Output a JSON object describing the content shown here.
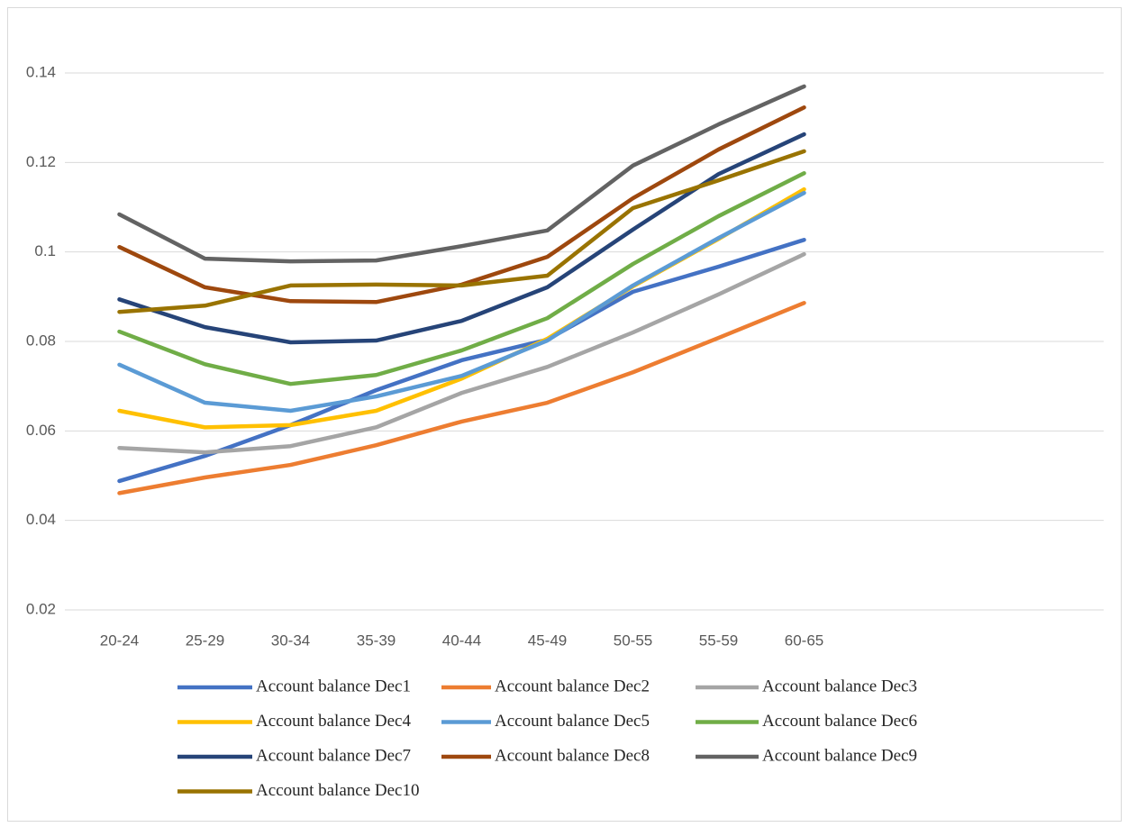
{
  "chart_data": {
    "type": "line",
    "categories": [
      "20-24",
      "25-29",
      "30-34",
      "35-39",
      "40-44",
      "45-49",
      "50-55",
      "55-59",
      "60-65",
      null,
      null,
      null
    ],
    "ylim": [
      0.02,
      0.14
    ],
    "yticks": [
      0.02,
      0.04,
      0.06,
      0.08,
      0.1,
      0.12,
      0.14
    ],
    "grid": true,
    "series": [
      {
        "name": "Account balance Dec1",
        "color": "#4472C4",
        "values": [
          0.0488,
          0.0544,
          0.0613,
          0.0691,
          0.0758,
          0.0804,
          0.0911,
          0.0967,
          0.1027,
          null,
          null,
          null
        ]
      },
      {
        "name": "Account balance Dec2",
        "color": "#ED7D31",
        "values": [
          0.0461,
          0.0496,
          0.0524,
          0.0568,
          0.0621,
          0.0663,
          0.0731,
          0.0808,
          0.0886,
          null,
          null,
          null
        ]
      },
      {
        "name": "Account balance Dec3",
        "color": "#A5A5A5",
        "values": [
          0.0562,
          0.0552,
          0.0566,
          0.0608,
          0.0685,
          0.0743,
          0.082,
          0.0905,
          0.0995,
          null,
          null,
          null
        ]
      },
      {
        "name": "Account balance Dec4",
        "color": "#FFC000",
        "values": [
          0.0645,
          0.0608,
          0.0613,
          0.0645,
          0.0717,
          0.0806,
          0.0923,
          0.1029,
          0.114,
          null,
          null,
          null
        ]
      },
      {
        "name": "Account balance Dec5",
        "color": "#5B9BD5",
        "values": [
          0.0748,
          0.0663,
          0.0645,
          0.0677,
          0.0723,
          0.0802,
          0.0925,
          0.1031,
          0.1132,
          null,
          null,
          null
        ]
      },
      {
        "name": "Account balance Dec6",
        "color": "#70AD47",
        "values": [
          0.0822,
          0.0749,
          0.0705,
          0.0725,
          0.078,
          0.0852,
          0.0973,
          0.108,
          0.1176,
          null,
          null,
          null
        ]
      },
      {
        "name": "Account balance Dec7",
        "color": "#264478",
        "values": [
          0.0894,
          0.0832,
          0.0798,
          0.0802,
          0.0846,
          0.0921,
          0.105,
          0.1174,
          0.1263,
          null,
          null,
          null
        ]
      },
      {
        "name": "Account balance Dec8",
        "color": "#9E480E",
        "values": [
          0.1011,
          0.0921,
          0.089,
          0.0888,
          0.0927,
          0.0989,
          0.112,
          0.1229,
          0.1323,
          null,
          null,
          null
        ]
      },
      {
        "name": "Account balance Dec9",
        "color": "#636363",
        "values": [
          0.1084,
          0.0985,
          0.0979,
          0.0981,
          0.1013,
          0.1048,
          0.1193,
          0.1285,
          0.137,
          null,
          null,
          null
        ]
      },
      {
        "name": "Account balance Dec10",
        "color": "#997300",
        "values": [
          0.0866,
          0.088,
          0.0925,
          0.0927,
          0.0925,
          0.0947,
          0.1098,
          0.116,
          0.1225,
          null,
          null,
          null
        ]
      }
    ]
  }
}
